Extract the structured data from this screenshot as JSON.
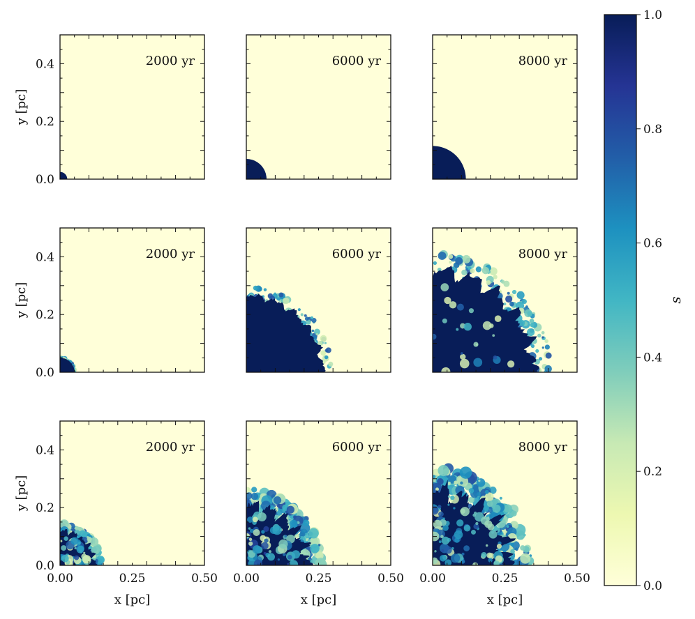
{
  "chart_data": {
    "type": "heatmap",
    "grid": {
      "rows": 3,
      "cols": 3
    },
    "xlabel": "x [pc]",
    "ylabel": "y [pc]",
    "xlim": [
      0.0,
      0.5
    ],
    "ylim": [
      0.0,
      0.5
    ],
    "x_ticks": [
      "0.00",
      "0.25",
      "0.50"
    ],
    "y_ticks": [
      "0.0",
      "0.2",
      "0.4"
    ],
    "panels": [
      {
        "row": 0,
        "col": 0,
        "label": "2000 yr",
        "front_radius_pc": 0.025,
        "turbulence": 0.0
      },
      {
        "row": 0,
        "col": 1,
        "label": "6000 yr",
        "front_radius_pc": 0.07,
        "turbulence": 0.0
      },
      {
        "row": 0,
        "col": 2,
        "label": "8000 yr",
        "front_radius_pc": 0.115,
        "turbulence": 0.0
      },
      {
        "row": 1,
        "col": 0,
        "label": "2000 yr",
        "front_radius_pc": 0.05,
        "turbulence": 0.05
      },
      {
        "row": 1,
        "col": 1,
        "label": "6000 yr",
        "front_radius_pc": 0.265,
        "turbulence": 0.3
      },
      {
        "row": 1,
        "col": 2,
        "label": "8000 yr",
        "front_radius_pc": 0.35,
        "turbulence": 0.5
      },
      {
        "row": 2,
        "col": 0,
        "label": "2000 yr",
        "front_radius_pc": 0.12,
        "turbulence": 0.6
      },
      {
        "row": 2,
        "col": 1,
        "label": "6000 yr",
        "front_radius_pc": 0.21,
        "turbulence": 0.8
      },
      {
        "row": 2,
        "col": 2,
        "label": "8000 yr",
        "front_radius_pc": 0.26,
        "turbulence": 1.0
      }
    ],
    "colorbar": {
      "label": "s",
      "range": [
        0.0,
        1.0
      ],
      "ticks": [
        "0.0",
        "0.2",
        "0.4",
        "0.6",
        "0.8",
        "1.0"
      ],
      "colormap": "YlGnBu",
      "colors": [
        "#ffffd9",
        "#edf8b1",
        "#c7e9b4",
        "#7fcdbb",
        "#41b6c4",
        "#1d91c0",
        "#225ea8",
        "#253494",
        "#081d58"
      ]
    }
  }
}
